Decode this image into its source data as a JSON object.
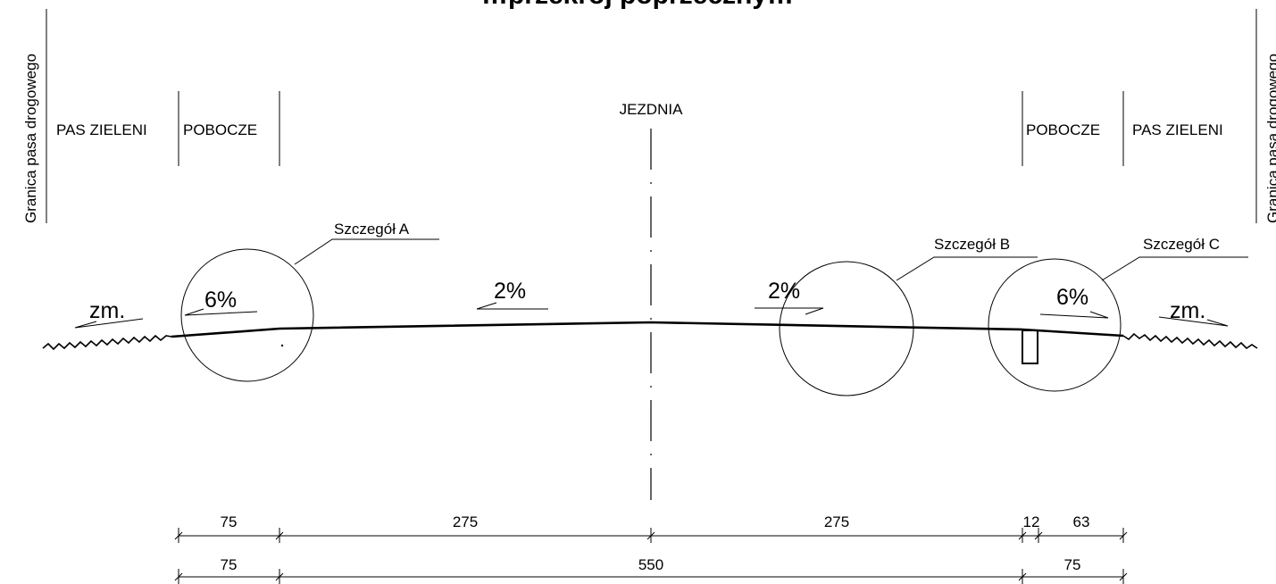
{
  "title_partial": "…przekrój poprzeczny…",
  "boundary_labels": {
    "left": "Granica pasa drogowego",
    "right": "Granica pasa drogowego"
  },
  "zones": {
    "left_green": "PAS ZIELENI",
    "left_shoulder": "POBOCZE",
    "carriageway": "JEZDNIA",
    "right_shoulder": "POBOCZE",
    "right_green": "PAS ZIELENI"
  },
  "details": {
    "a": "Szczegół A",
    "b": "Szczegół B",
    "c": "Szczegół C"
  },
  "slopes": {
    "left_verge": "zm.",
    "left_shoulder": "6%",
    "left_lane": "2%",
    "right_lane": "2%",
    "right_shoulder": "6%",
    "right_verge": "zm."
  },
  "dimensions": {
    "row1": [
      "75",
      "275",
      "275",
      "12",
      "63"
    ],
    "row2": [
      "75",
      "550",
      "75"
    ]
  },
  "colors": {
    "line": "#000000",
    "background": "#ffffff"
  }
}
